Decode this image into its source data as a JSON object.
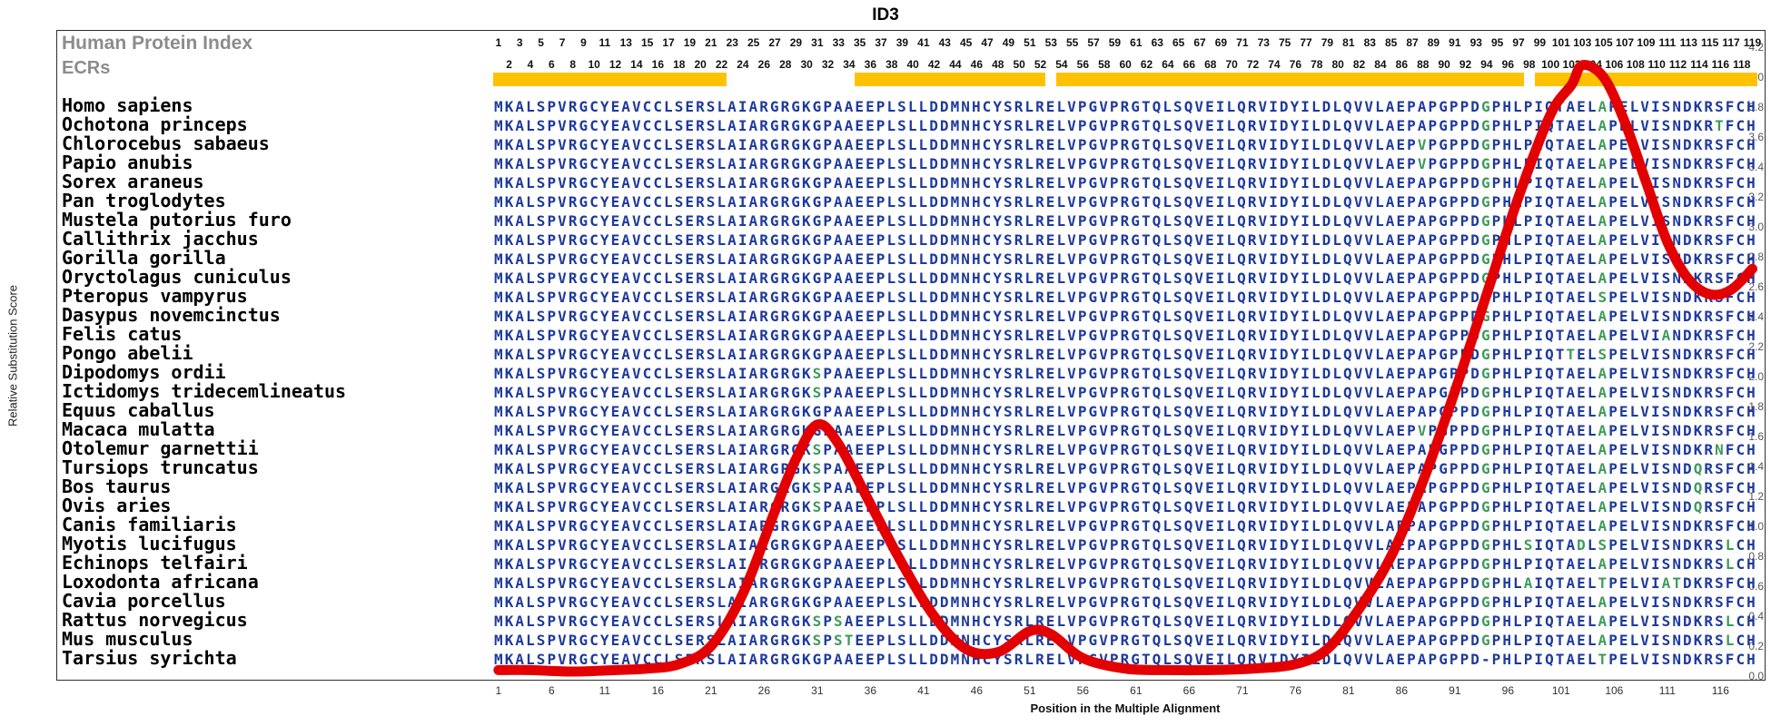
{
  "header": {
    "index_label": "Human Protein Index",
    "ecr_label": "ECRs"
  },
  "colors": {
    "sequence": "#1E3A9C",
    "variant": "#3E9B5B",
    "curve": "#E30000",
    "ecr": "#FFC200",
    "header_gray": "#8C8C8C"
  },
  "ruler": {
    "odd": [
      1,
      3,
      5,
      7,
      9,
      11,
      13,
      15,
      17,
      19,
      21,
      23,
      25,
      27,
      29,
      31,
      33,
      35,
      37,
      39,
      41,
      43,
      45,
      47,
      49,
      51,
      53,
      55,
      57,
      59,
      61,
      63,
      65,
      67,
      69,
      71,
      73,
      75,
      77,
      79,
      81,
      83,
      85,
      87,
      89,
      91,
      93,
      95,
      97,
      99,
      101,
      103,
      105,
      107,
      109,
      111,
      113,
      115,
      117,
      119
    ],
    "even": [
      2,
      4,
      6,
      8,
      10,
      12,
      14,
      16,
      18,
      20,
      22,
      24,
      26,
      28,
      30,
      32,
      34,
      36,
      38,
      40,
      42,
      44,
      46,
      48,
      50,
      52,
      54,
      56,
      58,
      60,
      62,
      64,
      66,
      68,
      70,
      72,
      74,
      76,
      78,
      80,
      82,
      84,
      86,
      88,
      90,
      92,
      94,
      96,
      98,
      100,
      102,
      104,
      106,
      108,
      110,
      112,
      114,
      116,
      118
    ]
  },
  "species": [
    {
      "name": "Homo sapiens",
      "seq": "MKALSPVRGCYEAVCCLSERSLAIARGRGKGPAAEEPLSLLDDMNHCYSRLRELVPGVPRGTQLSQVEILQRVIDYILDLQVVLAEPAPGPPDGPHLPIQTAELAPELVISNDKRSFCH",
      "green": [
        93,
        104
      ]
    },
    {
      "name": "Ochotona princeps",
      "seq": "MKALSPVRGCYEAVCCLSERSLAIARGRGKGPAAEEPLSLLDDMNHCYSRLRELVPGVPRGTQLSQVEILQRVIDYILDLQVVLAEPAPGPPDGPHLPIQTAELAPELVISNDKRTFCH",
      "green": [
        93,
        104,
        115
      ]
    },
    {
      "name": "Chlorocebus sabaeus",
      "seq": "MKALSPVRGCYEAVCCLSERSLAIARGRGKGPAAEEPLSLLDDMNHCYSRLRELVPGVPRGTQLSQVEILQRVIDYILDLQVVLAEPVPGPPDGPHLPIQTAELAPELVISNDKRSFCH",
      "green": [
        87,
        93,
        104
      ]
    },
    {
      "name": "Papio anubis",
      "seq": "MKALSPVRGCYEAVCCLSERSLAIARGRGKGPAAEEPLSLLDDMNHCYSRLRELVPGVPRGTQLSQVEILQRVIDYILDLQVVLAEPVPGPPDGPHLPIQTAELAPELVISNDKRSFCH",
      "green": [
        87,
        93,
        104
      ]
    },
    {
      "name": "Sorex araneus",
      "seq": "MKALSPVRGCYEAVCCLSERSLAIARGRGKGPAAEEPLSLLDDMNHCYSRLRELVPGVPRGTQLSQVEILQRVIDYILDLQVVLAEPAPGPPDGPHLPIQTAELAPELVISNDKRSFCH",
      "green": [
        93,
        104
      ]
    },
    {
      "name": "Pan troglodytes",
      "seq": "MKALSPVRGCYEAVCCLSERSLAIARGRGKGPAAEEPLSLLDDMNHCYSRLRELVPGVPRGTQLSQVEILQRVIDYILDLQVVLAEPAPGPPDGPHLPIQTAELAPELVISNDKRSFCH",
      "green": [
        93,
        104
      ]
    },
    {
      "name": "Mustela putorius furo",
      "seq": "MKALSPVRGCYEAVCCLSERSLAIARGRGKGPAAEEPLSLLDDMNHCYSRLRELVPGVPRGTQLSQVEILQRVIDYILDLQVVLAEPAPGPPDGPHLPIQTAELAPELVISNDKRSFCH",
      "green": [
        93,
        104
      ]
    },
    {
      "name": "Callithrix jacchus",
      "seq": "MKALSPVRGCYEAVCCLSERSLAIARGRGKGPAAEEPLSLLDDMNHCYSRLRELVPGVPRGTQLSQVEILQRVIDYILDLQVVLAEPAPGPPDGPHLPIQTAELAPELVISNDKRSFCH",
      "green": [
        93,
        104
      ]
    },
    {
      "name": "Gorilla gorilla",
      "seq": "MKALSPVRGCYEAVCCLSERSLAIARGRGKGPAAEEPLSLLDDMNHCYSRLRELVPGVPRGTQLSQVEILQRVIDYILDLQVVLAEPAPGPPDGPHLPIQTAELAPELVISNDKRSFCH",
      "green": [
        93,
        104
      ]
    },
    {
      "name": "Oryctolagus cuniculus",
      "seq": "MKALSPVRGCYEAVCCLSERSLAIARGRGKGPAAEEPLSLLDDMNHCYSRLRELVPGVPRGTQLSQVEILQRVIDYILDLQVVLAEPAPGPPDGPHLPIQTAELAPELVISNDKRSFCH",
      "green": [
        93,
        104
      ]
    },
    {
      "name": "Pteropus vampyrus",
      "seq": "MKALSPVRGCYEAVCCLSERSLAIARGRGKGPAAEEPLSLLDDMNHCYSRLRELVPGVPRGTQLSQVEILQRVIDYILDLQVVLAEPAPGPPDGPHLPIQTAELSPELVISNDKRSFCH",
      "green": [
        93,
        104
      ]
    },
    {
      "name": "Dasypus novemcinctus",
      "seq": "MKALSPVRGCYEAVCCLSERSLAIARGRGKGPAAEEPLSLLDDMNHCYSRLRELVPGVPRGTQLSQVEILQRVIDYILDLQVVLAEPAPGPPDGPHLPIQTAELAPELVISNDKRSFCH",
      "green": [
        93,
        104
      ]
    },
    {
      "name": "Felis catus",
      "seq": "MKALSPVRGCYEAVCCLSERSLAIARGRGKGPAAEEPLSLLDDMNHCYSRLRELVPGVPRGTQLSQVEILQRVIDYILDLQVVLAEPAPGPPDGPHLPIQTAELAPELVIANDKRSFCH",
      "green": [
        93,
        104,
        110
      ]
    },
    {
      "name": "Pongo abelii",
      "seq": "MKALSPVRGCYEAVCCLSERSLAIARGRGKGPAAEEPLSLLDDMNHCYSRLRELVPGVPRGTQLSQVEILQRVIDYILDLQVVLAEPAPGPPDGPHLPIQTTELSPELVISNDKRSFCH",
      "green": [
        93,
        101,
        104
      ]
    },
    {
      "name": "Dipodomys ordii",
      "seq": "MKALSPVRGCYEAVCCLSERSLAIARGRGKSPAAEEPLSLLDDMNHCYSRLRELVPGVPRGTQLSQVEILQRVIDYILDLQVVLAEPAPGPPDGPHLPIQTAELAPELVISNDKRSFCH",
      "green": [
        30,
        93,
        104
      ]
    },
    {
      "name": "Ictidomys tridecemlineatus",
      "seq": "MKALSPVRGCYEAVCCLSERSLAIARGRGKSPAAEEPLSLLDDMNHCYSRLRELVPGVPRGTQLSQVEILQRVIDYILDLQVVLAEPAPGPPDGPHLPIQTAELAPELVISNDKRSFCH",
      "green": [
        30,
        93,
        104
      ]
    },
    {
      "name": "Equus caballus",
      "seq": "MKALSPVRGCYEAVCCLSERSLAIARGRGKGPAAEEPLSLLDDMNHCYSRLRELVPGVPRGTQLSQVEILQRVIDYILDLQVVLAEPAPGPPDGPHLPIQTAELAPELVISNDKRSFCH",
      "green": [
        93,
        104
      ]
    },
    {
      "name": "Macaca mulatta",
      "seq": "MKALSPVRGCYEAVCCLSERSLAIARGRGKGPAAEEPLSLLDDMNHCYSRLRELVPGVPRGTQLSQVEILQRVIDYILDLQVVLAEPVPGPPDGPHLPIQTAELAPELVISNDKRSFCH",
      "green": [
        87,
        93,
        104
      ]
    },
    {
      "name": "Otolemur garnettii",
      "seq": "MKALSPVRGCYEAVCCLSERSLAIARGRGKSPAAEEPLSLLDDMNHCYSRLRELVPGVPRGTQLSQVEILQRVIDYILDLQVVLAEPAPGPPDGPHLPIQTAELAPELVISNDKRNFCH",
      "green": [
        30,
        93,
        104,
        115
      ]
    },
    {
      "name": "Tursiops truncatus",
      "seq": "MKALSPVRGCYEAVCCLSERSLAIARGRGKSPAAEEPLSLLDDMNHCYSRLRELVPGVPRGTQLSQVEILQRVIDYILDLQVVLAEPAPGPPDGPHLPIQTAELAPELVISNDQRSFCH",
      "green": [
        30,
        93,
        104,
        113
      ]
    },
    {
      "name": "Bos taurus",
      "seq": "MKALSPVRGCYEAVCCLSERSLAIARGRGKSPAAEEPLSLLDDMNHCYSRLRELVPGVPRGTQLSQVEILQRVIDYILDLQVVLAEPAPGPPDGPHLPIQTAELAPELVISNDQRSFCH",
      "green": [
        30,
        93,
        104,
        113
      ]
    },
    {
      "name": "Ovis aries",
      "seq": "MKALSPVRGCYEAVCCLSERSLAIARGRGKSPAAEEPLSLLDDMNHCYSRLRELVPGVPRGTQLSQVEILQRVIDYILDLQVVLAEPAPGPPDGPHLPIQTAELAPELVISNDQRSFCH",
      "green": [
        30,
        93,
        104,
        113
      ]
    },
    {
      "name": "Canis familiaris",
      "seq": "MKALSPVRGCYEAVCCLSERSLAIARGRGKGPAAEEPLSLLDDMNHCYSRLRELVPGVPRGTQLSQVEILQRVIDYILDLQVVLAEPAPGPPDGPHLPIQTAELAPELVISNDKRSFCH",
      "green": [
        93,
        104
      ]
    },
    {
      "name": "Myotis lucifugus",
      "seq": "MKALSPVRGCYEAVCCLSERSLAIARGRGKGPAAEEPLSLLDDMNHCYSRLRELVPGVPRGTQLSQVEILQRVIDYILDLQVVLAEPAPGPPDGPHLSIQTADLSPELVISNDKRSLCH",
      "green": [
        93,
        97,
        102,
        104,
        116
      ]
    },
    {
      "name": "Echinops telfairi",
      "seq": "MKALSPVRGCYEAVCCLSERSLAIARGRGKGPAAEEPLSLLDDMNHCYSRLRELVPGVPRGTQLSQVEILQRVIDYILDLQVVLAEPAPGPPDGPHLPIQTAELAPELVISNDKRSLCH",
      "green": [
        93,
        104,
        116
      ]
    },
    {
      "name": "Loxodonta africana",
      "seq": "MKALSPVRGCYEAVCCLSERSLAIARGRGKGPAAEEPLSLLDDMNHCYSRLRELVPGVPRGTQLSQVEILQRVIDYILDLQVVLAEPAPGPPDGPHLAIQTAELTPELVIATDKRSFCH",
      "green": [
        93,
        97,
        104,
        110,
        111
      ]
    },
    {
      "name": "Cavia porcellus",
      "seq": "MKALSPVRGCYEAVCCLSERSLAIARGRGKGPAAEEPLSLLDDMNHCYSRLRELVPGVPRGTQLSQVEILQRVIDYILDLQVVLAEPAPGPPDGPHLPIQTAELAPELVISNDKRSFCH",
      "green": [
        93,
        104
      ]
    },
    {
      "name": "Rattus norvegicus",
      "seq": "MKALSPVRGCYEAVCCLSERSLAIARGRGKSPSAEEPLSLLDDMNHCYSRLRELVPGVPRGTQLSQVEILQRVIDYILDLQVVLAEPAPGPPDGPHLPIQTAELAPELVISNDKRSLCH",
      "green": [
        30,
        32,
        93,
        104,
        116
      ]
    },
    {
      "name": "Mus musculus",
      "seq": "MKALSPVRGCYEAVCCLSERSLAIARGRGKSPSTEEPLSLLDDMNHCYSRLRELVPGVPRGTQLSQVEILQRVIDYILDLQVVLAEPAPGPPDGPHLPIQTAELAPELVISNDKRSLCH",
      "green": [
        30,
        32,
        33,
        93,
        104,
        116
      ]
    },
    {
      "name": "Tarsius syrichta",
      "seq": "MKALSPVRGCYEAVCCLSERSLAIARGRGKGPAAEEPLSLLDDMNHCYSRLRELVPGVPRGTQLSQVEILQRVIDYILDLQVVLAEPAPGPPD-PHLPIQTAELTPELVISNDKRSFCH",
      "green": [
        104
      ]
    }
  ],
  "chart_data": {
    "type": "line",
    "title": "ID3",
    "xlabel": "Position in the Multiple Alignment",
    "ylabel": "Relative Substitution Score",
    "xlim": [
      1,
      119
    ],
    "ylim": [
      0,
      4.2
    ],
    "x_ticks": [
      1,
      6,
      11,
      16,
      21,
      26,
      31,
      36,
      41,
      46,
      51,
      56,
      61,
      66,
      71,
      76,
      81,
      86,
      91,
      96,
      101,
      106,
      111,
      116
    ],
    "y_ticks": [
      "4.2",
      "4.0",
      "3.8",
      "3.6",
      "3.4",
      "3.2",
      "3.0",
      "2.8",
      "2.6",
      "2.4",
      "2.2",
      "2.0",
      "1.8",
      "1.6",
      "1.4",
      "1.2",
      "1.0",
      "0.8",
      "0.6",
      "0.4",
      "0.2",
      "0.0"
    ],
    "grid": false,
    "legend": "none",
    "ecr_segments": [
      [
        1,
        22
      ],
      [
        35,
        52
      ],
      [
        54,
        97
      ],
      [
        99,
        119
      ]
    ],
    "series": [
      {
        "name": "Relative Substitution Score",
        "color": "#E30000",
        "x": [
          1,
          4,
          8,
          12,
          15,
          18,
          21,
          24,
          27,
          29,
          31,
          33,
          36,
          39,
          42,
          45,
          48,
          51,
          53,
          56,
          60,
          64,
          68,
          72,
          76,
          79,
          82,
          85,
          88,
          91,
          94,
          97,
          100,
          102,
          103,
          105,
          107,
          109,
          111,
          113,
          115,
          117,
          119
        ],
        "y": [
          0.04,
          0.04,
          0.03,
          0.04,
          0.05,
          0.08,
          0.2,
          0.55,
          1.1,
          1.45,
          1.68,
          1.55,
          1.15,
          0.75,
          0.4,
          0.18,
          0.16,
          0.3,
          0.28,
          0.12,
          0.05,
          0.04,
          0.04,
          0.05,
          0.08,
          0.18,
          0.45,
          0.8,
          1.3,
          1.9,
          2.55,
          3.2,
          3.75,
          3.95,
          4.08,
          4.0,
          3.7,
          3.3,
          2.9,
          2.65,
          2.55,
          2.58,
          2.72
        ]
      }
    ]
  }
}
